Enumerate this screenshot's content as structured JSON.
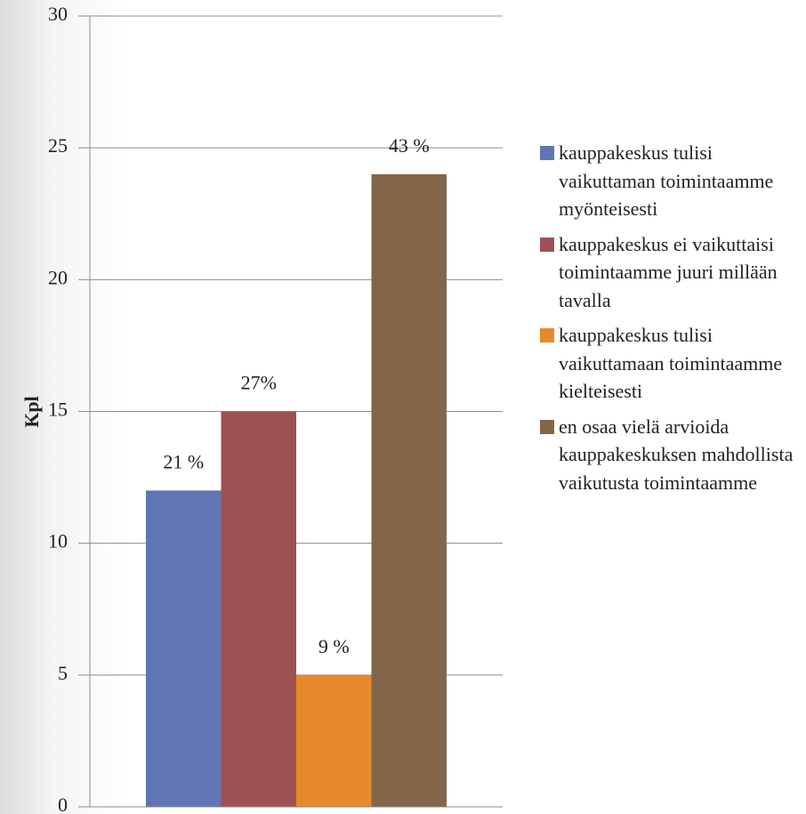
{
  "chart_data": {
    "type": "bar",
    "y_label": "Kpl",
    "categories": [
      null
    ],
    "series": [
      {
        "name": "kauppakeskus tulisi vaikuttaman toimintaamme myönteisesti",
        "color": "#6076b4",
        "values": [
          12
        ],
        "value_labels": [
          "21 %"
        ]
      },
      {
        "name": "kauppakeskus ei vaikuttaisi toimintaamme juuri millään tavalla",
        "color": "#9e5152",
        "values": [
          15
        ],
        "value_labels": [
          "27%"
        ]
      },
      {
        "name": "kauppakeskus tulisi vaikuttamaan toimintaamme kielteisesti",
        "color": "#e6892a",
        "values": [
          5
        ],
        "value_labels": [
          "9 %"
        ]
      },
      {
        "name": "en osaa vielä arvioida kauppakeskuksen mahdollista vaikutusta toimintaamme",
        "color": "#83664a",
        "values": [
          24
        ],
        "value_labels": [
          "43 %"
        ]
      }
    ],
    "ylim": [
      0,
      30
    ],
    "yticks": [
      0,
      5,
      10,
      15,
      20,
      25,
      30
    ],
    "grid": true,
    "legend": "right"
  }
}
